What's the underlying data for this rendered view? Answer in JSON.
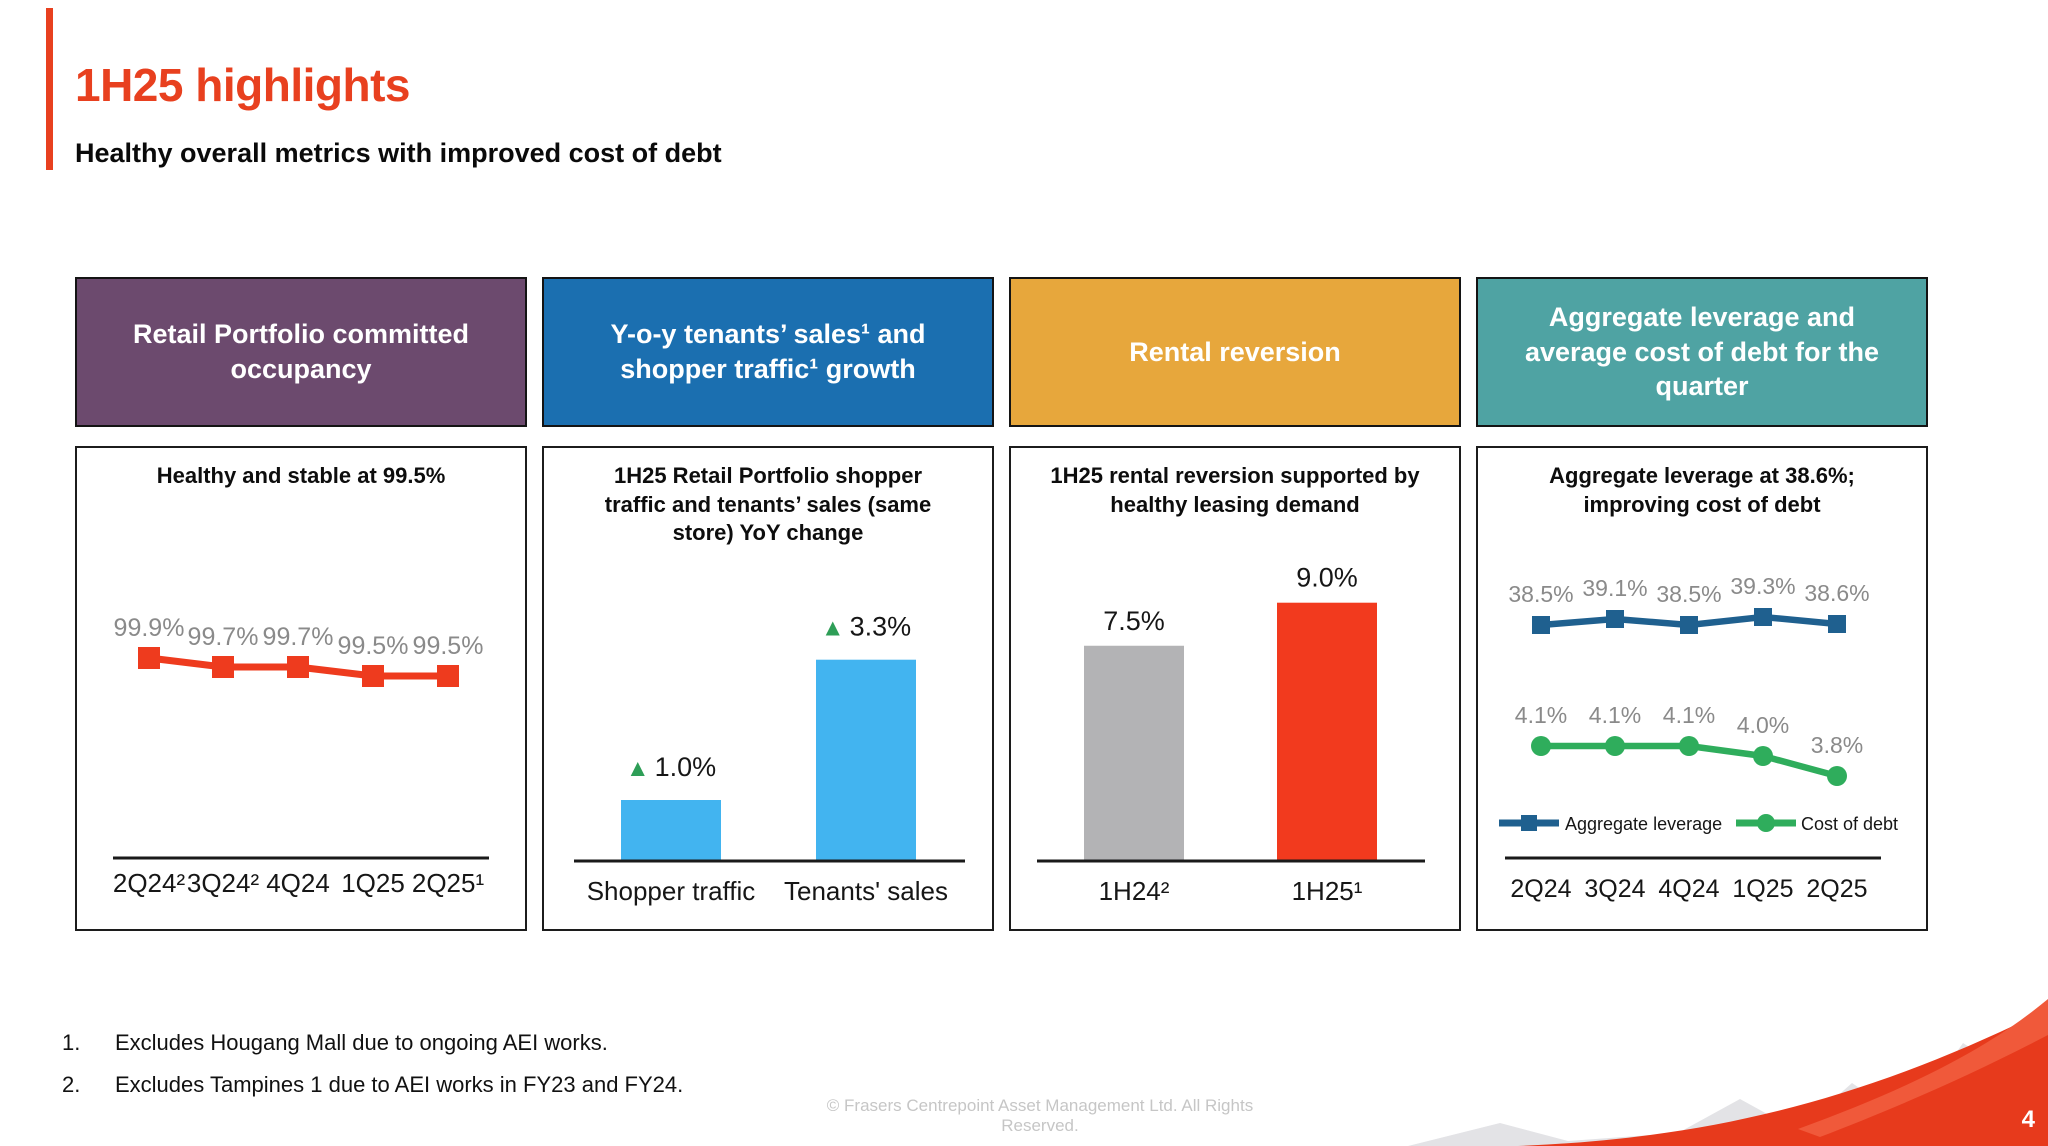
{
  "header": {
    "title": "1H25 highlights",
    "subtitle": "Healthy overall metrics with improved cost of debt",
    "accent_color": "#E8401F"
  },
  "panels": [
    {
      "header_label": "Retail Portfolio committed\noccupancy",
      "header_color": "#6C4A6E"
    },
    {
      "header_label": "Y-o-y tenants’ sales¹ and\nshopper traffic¹ growth",
      "header_color": "#1B6FB0"
    },
    {
      "header_label": "Rental reversion",
      "header_color": "#E7A73C"
    },
    {
      "header_label": "Aggregate leverage and\naverage cost of debt for the\nquarter",
      "header_color": "#4FA3A3"
    }
  ],
  "chart_data": [
    {
      "type": "line",
      "title": "Healthy and stable at 99.5%",
      "categories": [
        "2Q24²",
        "3Q24²",
        "4Q24",
        "1Q25",
        "2Q25¹"
      ],
      "values": [
        99.9,
        99.7,
        99.7,
        99.5,
        99.5
      ],
      "point_labels": [
        "99.9%",
        "99.7%",
        "99.7%",
        "99.5%",
        "99.5%"
      ],
      "unit": "%",
      "line_color": "#EE3B1E",
      "label_color": "#8A8A8A",
      "marker": "square",
      "ylim": [
        99.0,
        100.0
      ],
      "grid": false,
      "legend": "none"
    },
    {
      "type": "bar",
      "title": "1H25 Retail Portfolio shopper\ntraffic and tenants’ sales (same\nstore) YoY change",
      "categories": [
        "Shopper traffic",
        "Tenants' sales"
      ],
      "values": [
        1.0,
        3.3
      ],
      "bar_labels": [
        "▲1.0%",
        "▲3.3%"
      ],
      "unit": "%",
      "bar_color": "#42B4F0",
      "triangle_color": "#2E9E57",
      "ylim": [
        0,
        4
      ],
      "grid": false,
      "legend": "none"
    },
    {
      "type": "bar",
      "title": "1H25 rental reversion supported by\nhealthy leasing demand",
      "categories": [
        "1H24²",
        "1H25¹"
      ],
      "values": [
        7.5,
        9.0
      ],
      "bar_labels": [
        "7.5%",
        "9.0%"
      ],
      "unit": "%",
      "bar_colors": [
        "#B3B3B5",
        "#F23A1E"
      ],
      "ylim": [
        0,
        10
      ],
      "grid": false,
      "legend": "none"
    },
    {
      "type": "line",
      "title": "Aggregate leverage at 38.6%;\nimproving cost of debt",
      "categories": [
        "2Q24",
        "3Q24",
        "4Q24",
        "1Q25",
        "2Q25"
      ],
      "series": [
        {
          "name": "Aggregate leverage",
          "values": [
            38.5,
            39.1,
            38.5,
            39.3,
            38.6
          ],
          "point_labels": [
            "38.5%",
            "39.1%",
            "38.5%",
            "39.3%",
            "38.6%"
          ],
          "color": "#1F608F",
          "marker": "square"
        },
        {
          "name": "Cost of debt",
          "values": [
            4.1,
            4.1,
            4.1,
            4.0,
            3.8
          ],
          "point_labels": [
            "4.1%",
            "4.1%",
            "4.1%",
            "4.0%",
            "3.8%"
          ],
          "color": "#2FAD5C",
          "marker": "circle"
        }
      ],
      "unit": "%",
      "label_color": "#8A8A8A",
      "legend_position": "bottom",
      "grid": false
    }
  ],
  "footnotes": [
    {
      "num": "1.",
      "text": "Excludes Hougang Mall due to ongoing AEI works."
    },
    {
      "num": "2.",
      "text": "Excludes Tampines 1 due to AEI works in FY23 and FY24."
    }
  ],
  "footer": {
    "copyright": "© Frasers Centrepoint Asset Management Ltd. All Rights Reserved.",
    "page_number": "4"
  }
}
